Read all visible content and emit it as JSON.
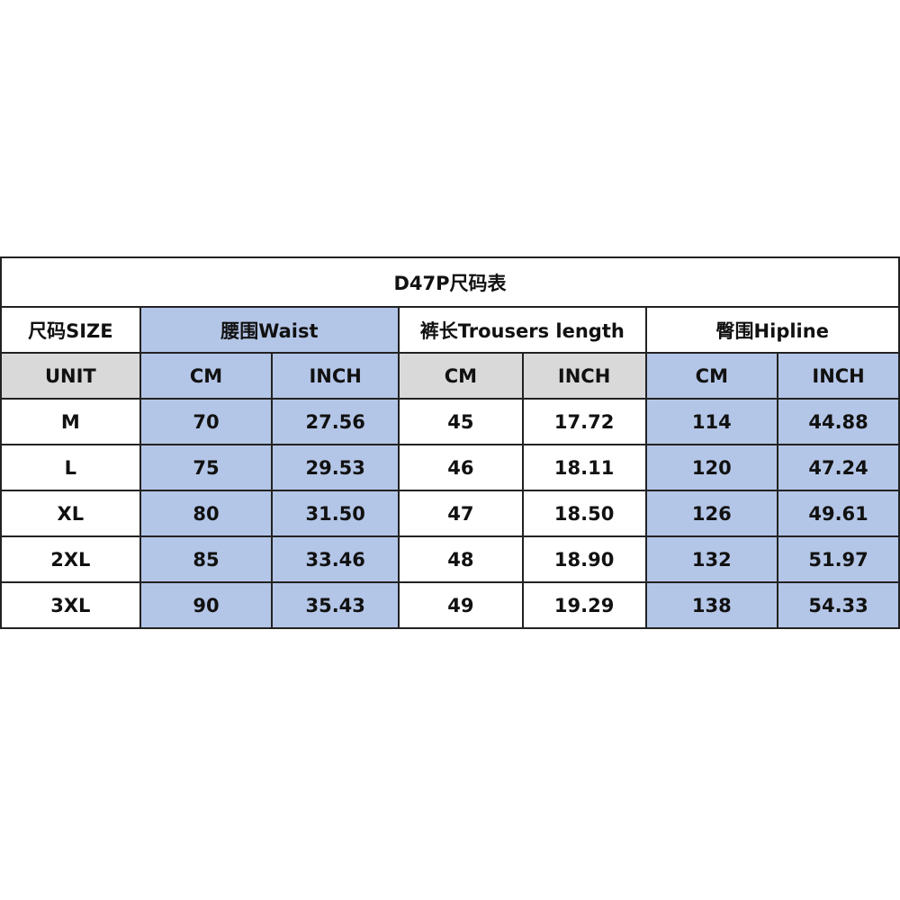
{
  "title": "D47P尺码表",
  "headers": {
    "size": "尺码SIZE",
    "waist": "腰围Waist",
    "trousers": "裤长Trousers length",
    "hipline": "臀围Hipline"
  },
  "units": {
    "label": "UNIT",
    "cm": "CM",
    "inch": "INCH"
  },
  "colors": {
    "blue": "#b4c6e7",
    "gray": "#d9d9d9"
  },
  "rows": [
    {
      "size": "M",
      "waist_cm": "70",
      "waist_in": "27.56",
      "len_cm": "45",
      "len_in": "17.72",
      "hip_cm": "114",
      "hip_in": "44.88"
    },
    {
      "size": "L",
      "waist_cm": "75",
      "waist_in": "29.53",
      "len_cm": "46",
      "len_in": "18.11",
      "hip_cm": "120",
      "hip_in": "47.24"
    },
    {
      "size": "XL",
      "waist_cm": "80",
      "waist_in": "31.50",
      "len_cm": "47",
      "len_in": "18.50",
      "hip_cm": "126",
      "hip_in": "49.61"
    },
    {
      "size": "2XL",
      "waist_cm": "85",
      "waist_in": "33.46",
      "len_cm": "48",
      "len_in": "18.90",
      "hip_cm": "132",
      "hip_in": "51.97"
    },
    {
      "size": "3XL",
      "waist_cm": "90",
      "waist_in": "35.43",
      "len_cm": "49",
      "len_in": "19.29",
      "hip_cm": "138",
      "hip_in": "54.33"
    }
  ]
}
